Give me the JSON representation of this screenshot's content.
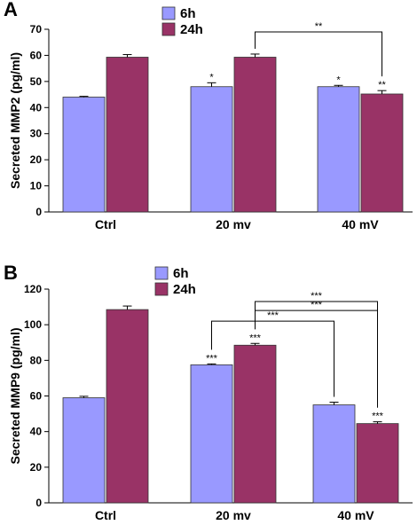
{
  "chart_data": [
    {
      "type": "bar",
      "panel": "A",
      "ylabel": "Secreted MMP2 (pg/ml)",
      "xlabel": "",
      "ylim": [
        0,
        70
      ],
      "yticks": [
        0,
        10,
        20,
        30,
        40,
        50,
        60,
        70
      ],
      "categories": [
        "Ctrl",
        "20 mv",
        "40 mV"
      ],
      "legend_position": "top-center",
      "series": [
        {
          "name": "6h",
          "color": "#9999ff",
          "values": [
            44,
            48,
            48
          ],
          "errors": [
            0.3,
            1.5,
            0.5
          ],
          "labels": [
            "",
            "*",
            "*"
          ]
        },
        {
          "name": "24h",
          "color": "#993366",
          "values": [
            59.3,
            59.3,
            45.2
          ],
          "errors": [
            1.0,
            1.2,
            1.3
          ],
          "labels": [
            "",
            "",
            "**"
          ]
        }
      ],
      "brackets": [
        {
          "from": [
            1,
            1
          ],
          "to": [
            2,
            1
          ],
          "text": "**",
          "y": 69
        }
      ]
    },
    {
      "type": "bar",
      "panel": "B",
      "ylabel": "Secreted MMP9 (pg/ml)",
      "xlabel": "",
      "ylim": [
        0,
        120
      ],
      "yticks": [
        0,
        20,
        40,
        60,
        80,
        100,
        120
      ],
      "categories": [
        "Ctrl",
        "20 mv",
        "40 mV"
      ],
      "legend_position": "top-center",
      "series": [
        {
          "name": "6h",
          "color": "#9999ff",
          "values": [
            59,
            77.5,
            55
          ],
          "errors": [
            0.8,
            0.5,
            1.5
          ],
          "labels": [
            "",
            "***",
            ""
          ]
        },
        {
          "name": "24h",
          "color": "#993366",
          "values": [
            108.5,
            88.5,
            44.5
          ],
          "errors": [
            2.0,
            1.0,
            1.0
          ],
          "labels": [
            "",
            "***",
            "***"
          ]
        }
      ],
      "brackets": [
        {
          "from": [
            1,
            0
          ],
          "to": [
            2,
            0
          ],
          "text": "***",
          "y": 102
        },
        {
          "from": [
            1,
            1
          ],
          "to": [
            2,
            1
          ],
          "text": "***",
          "y": 108
        },
        {
          "from": [
            1,
            1
          ],
          "to": [
            2,
            1
          ],
          "text": "***",
          "y": 113
        }
      ]
    }
  ]
}
